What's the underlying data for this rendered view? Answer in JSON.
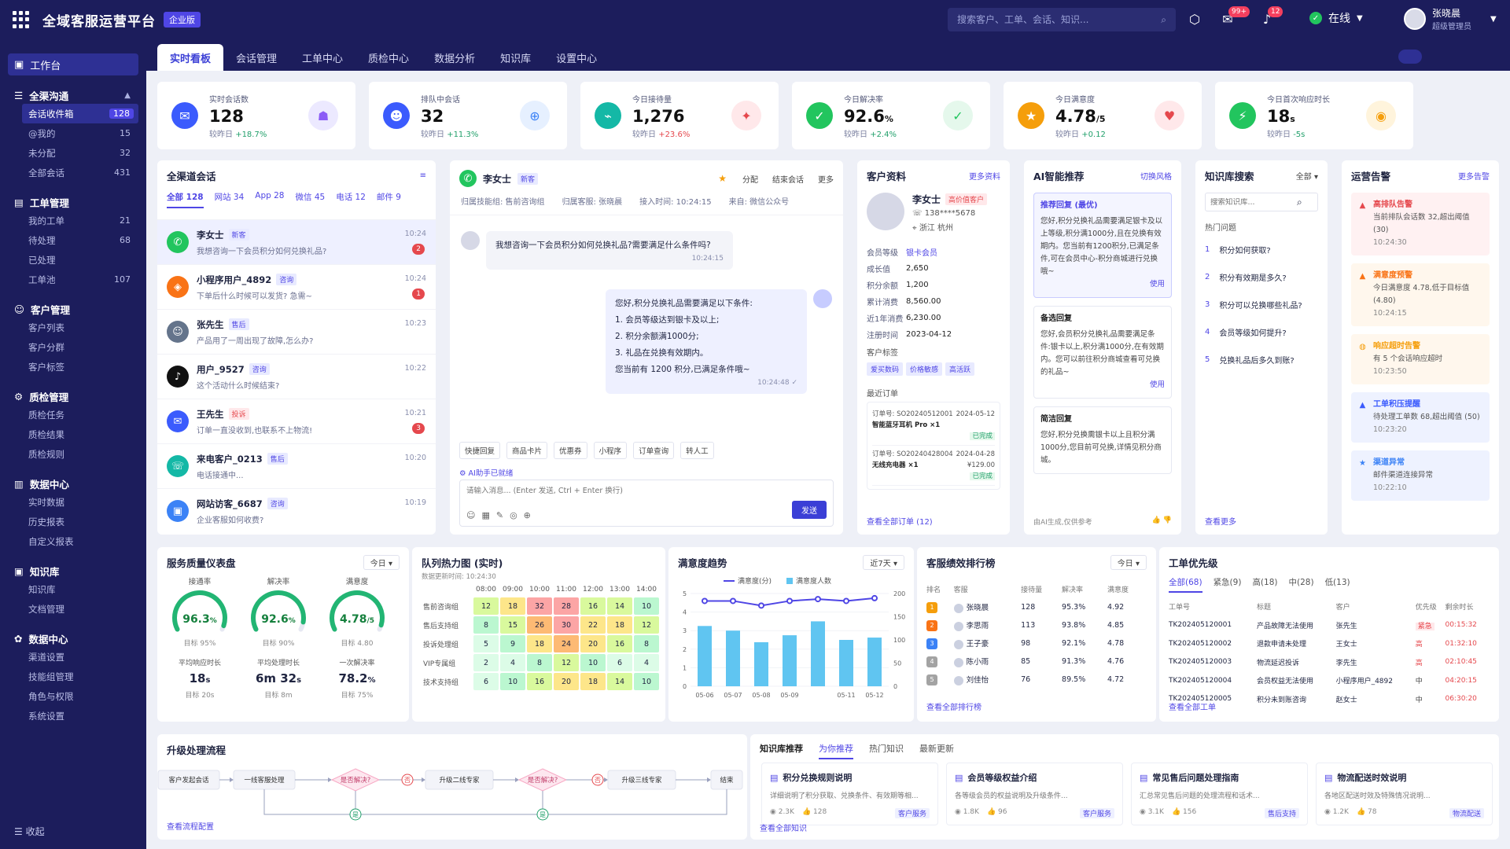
{
  "app": {
    "title": "全域客服运营平台",
    "edition": "企业版"
  },
  "search": {
    "placeholder": "搜索客户、工单、会话、知识..."
  },
  "badges": {
    "messages": "99+",
    "notifications": "12"
  },
  "status": "在线",
  "user": {
    "name": "张晓晨",
    "role": "超级管理员"
  },
  "sidebar": {
    "top": "工作台",
    "groups": [
      {
        "title": "全渠沟通",
        "items": [
          {
            "label": "会话收件箱",
            "count": "128"
          },
          {
            "label": "@我的",
            "count": "15"
          },
          {
            "label": "未分配",
            "count": "32"
          },
          {
            "label": "全部会话",
            "count": "431"
          }
        ]
      },
      {
        "title": "工单管理",
        "items": [
          {
            "label": "我的工单",
            "count": "21"
          },
          {
            "label": "待处理",
            "count": "68"
          },
          {
            "label": "已处理",
            "count": ""
          },
          {
            "label": "工单池",
            "count": "107"
          }
        ]
      },
      {
        "title": "客户管理",
        "items": [
          {
            "label": "客户列表",
            "count": ""
          },
          {
            "label": "客户分群",
            "count": ""
          },
          {
            "label": "客户标签",
            "count": ""
          }
        ]
      },
      {
        "title": "质检管理",
        "items": [
          {
            "label": "质检任务",
            "count": ""
          },
          {
            "label": "质检结果",
            "count": ""
          },
          {
            "label": "质检规则",
            "count": ""
          }
        ]
      },
      {
        "title": "数据中心",
        "items": [
          {
            "label": "实时数据",
            "count": ""
          },
          {
            "label": "历史报表",
            "count": ""
          },
          {
            "label": "自定义报表",
            "count": ""
          }
        ]
      },
      {
        "title": "知识库",
        "items": [
          {
            "label": "知识库",
            "count": ""
          },
          {
            "label": "文档管理",
            "count": ""
          }
        ]
      },
      {
        "title": "数据中心",
        "items": [
          {
            "label": "渠道设置",
            "count": ""
          },
          {
            "label": "技能组管理",
            "count": ""
          },
          {
            "label": "角色与权限",
            "count": ""
          },
          {
            "label": "系统设置",
            "count": ""
          }
        ]
      }
    ],
    "collapse": "收起"
  },
  "tabs": [
    "实时看板",
    "会话管理",
    "工单中心",
    "质检中心",
    "数据分析",
    "知识库",
    "设置中心"
  ],
  "kpis": [
    {
      "label": "实时会话数",
      "value": "128",
      "unit": "",
      "cmp_label": "较昨日",
      "cmp": "+18.7%",
      "dir": "up",
      "color": "#3b5bfd",
      "c2": "#ece9ff",
      "i2c": "#8b5cf6"
    },
    {
      "label": "排队中会话",
      "value": "32",
      "unit": "",
      "cmp_label": "较昨日",
      "cmp": "+11.3%",
      "dir": "up",
      "color": "#3b5bfd",
      "c2": "#e6f0ff",
      "i2c": "#3b82f6"
    },
    {
      "label": "今日接待量",
      "value": "1,276",
      "unit": "",
      "cmp_label": "较昨日",
      "cmp": "+23.6%",
      "dir": "down",
      "color": "#14b8a6",
      "c2": "#ffe8ea",
      "i2c": "#e5484d"
    },
    {
      "label": "今日解决率",
      "value": "92.6",
      "unit": "%",
      "cmp_label": "较昨日",
      "cmp": "+2.4%",
      "dir": "up",
      "color": "#22c55e",
      "c2": "#e5f8ec",
      "i2c": "#22c55e"
    },
    {
      "label": "今日满意度",
      "value": "4.78",
      "unit": "/5",
      "cmp_label": "较昨日",
      "cmp": "+0.12",
      "dir": "up",
      "color": "#f59e0b",
      "c2": "#ffe8ea",
      "i2c": "#e5484d"
    },
    {
      "label": "今日首次响应时长",
      "value": "18",
      "unit": "s",
      "cmp_label": "较昨日",
      "cmp": "-5s",
      "dir": "up",
      "color": "#22c55e",
      "c2": "#fff4dc",
      "i2c": "#f59e0b"
    }
  ],
  "conversations": {
    "title": "全渠道会话",
    "filters": [
      "全部 128",
      "网站 34",
      "App 28",
      "微信 45",
      "电话 12",
      "邮件 9"
    ],
    "rows": [
      {
        "name": "李女士",
        "tag": "新客",
        "tagc": "blue",
        "msg": "我想咨询一下会员积分如何兑换礼品?",
        "time": "10:24",
        "unread": "2",
        "color": "#22c55e"
      },
      {
        "name": "小程序用户_4892",
        "tag": "咨询",
        "tagc": "blue",
        "msg": "下单后什么时候可以发货? 急需~",
        "time": "10:24",
        "unread": "1",
        "color": "#f97316"
      },
      {
        "name": "张先生",
        "tag": "售后",
        "tagc": "blue",
        "msg": "产品用了一周出现了故障,怎么办?",
        "time": "10:23",
        "unread": "",
        "color": "#64748b"
      },
      {
        "name": "用户_9527",
        "tag": "咨询",
        "tagc": "blue",
        "msg": "这个活动什么时候结束?",
        "time": "10:22",
        "unread": "",
        "color": "#111111"
      },
      {
        "name": "王先生",
        "tag": "投诉",
        "tagc": "red",
        "msg": "订单一直没收到,也联系不上物流!",
        "time": "10:21",
        "unread": "3",
        "color": "#3b5bfd"
      },
      {
        "name": "来电客户_0213",
        "tag": "售后",
        "tagc": "blue",
        "msg": "电话接通中...",
        "time": "10:20",
        "unread": "",
        "color": "#14b8a6"
      },
      {
        "name": "网站访客_6687",
        "tag": "咨询",
        "tagc": "blue",
        "msg": "企业客服如何收费?",
        "time": "10:19",
        "unread": "",
        "color": "#3b82f6"
      }
    ]
  },
  "chat": {
    "name": "李女士",
    "tag": "新客",
    "actions": [
      "分配",
      "结束会话",
      "更多"
    ],
    "meta": [
      "归属技能组: 售前咨询组",
      "归属客服: 张晓晨",
      "接入时间: 10:24:15",
      "来自: 微信公众号"
    ],
    "msg_in": "我想咨询一下会员积分如何兑换礼品?需要满足什么条件吗?",
    "msg_in_time": "10:24:15",
    "reply": [
      "您好,积分兑换礼品需要满足以下条件:",
      "1. 会员等级达到银卡及以上;",
      "2. 积分余额满1000分;",
      "3. 礼品在兑换有效期内。",
      "您当前有 1200 积分,已满足条件哦~"
    ],
    "reply_time": "10:24:48",
    "quick": [
      "快捷回复",
      "商品卡片",
      "优惠券",
      "小程序",
      "订单查询",
      "转人工"
    ],
    "ai_status": "AI助手已就绪",
    "input_placeholder": "请输入消息... (Enter 发送, Ctrl + Enter 换行)",
    "send": "发送"
  },
  "customer": {
    "title": "客户资料",
    "more": "更多资料",
    "name": "李女士",
    "level_tag": "高价值客户",
    "phone": "138****5678",
    "location": "浙江 杭州",
    "fields": [
      [
        "会员等级",
        "银卡会员"
      ],
      [
        "成长值",
        "2,650"
      ],
      [
        "积分余额",
        "1,200"
      ],
      [
        "累计消费",
        "8,560.00"
      ],
      [
        "近1年消费",
        "6,230.00"
      ],
      [
        "注册时间",
        "2023-04-12"
      ]
    ],
    "tags_label": "客户标签",
    "tags": [
      "爱买数码",
      "价格敏感",
      "高活跃"
    ],
    "orders_label": "最近订单",
    "orders": [
      {
        "no": "订单号: SO20240512001",
        "date": "2024-05-12",
        "item": "智能蓝牙耳机 Pro ×1",
        "status": "已完成",
        "amount": ""
      },
      {
        "no": "订单号: SO20240428004",
        "date": "2024-04-28",
        "item": "无线充电器 ×1",
        "status": "已完成",
        "amount": "¥129.00"
      }
    ],
    "all_orders": "查看全部订单 (12)"
  },
  "ai": {
    "title": "AI智能推荐",
    "switch": "切换风格",
    "cards": [
      {
        "h": "推荐回复 (最优)",
        "b": "您好,积分兑换礼品需要满足银卡及以上等级,积分满1000分,且在兑换有效期内。您当前有1200积分,已满足条件,可在会员中心-积分商城进行兑换哦~",
        "use": "使用"
      },
      {
        "h": "备选回复",
        "b": "您好,会员积分兑换礼品需要满足条件:银卡以上,积分满1000分,在有效期内。您可以前往积分商城查看可兑换的礼品~",
        "use": "使用"
      },
      {
        "h": "简洁回复",
        "b": "您好,积分兑换需银卡以上且积分满1000分,您目前可兑换,详情见积分商城。",
        "use": ""
      }
    ],
    "footer": "由AI生成,仅供参考"
  },
  "kb": {
    "title": "知识库搜索",
    "filter": "全部",
    "placeholder": "搜索知识库...",
    "hot": "热门问题",
    "questions": [
      "积分如何获取?",
      "积分有效期是多久?",
      "积分可以兑换哪些礼品?",
      "会员等级如何提升?",
      "兑换礼品后多久到账?"
    ],
    "more": "查看更多"
  },
  "alerts": {
    "title": "运营告警",
    "more": "更多告警",
    "items": [
      {
        "t": "高排队告警",
        "d": "当前排队会话数 32,超出阈值 (30)",
        "tm": "10:24:30",
        "bg": "#fff1f2",
        "c": "#e5484d"
      },
      {
        "t": "满意度预警",
        "d": "今日满意度 4.78,低于目标值 (4.80)",
        "tm": "10:24:15",
        "bg": "#fff7ed",
        "c": "#f97316"
      },
      {
        "t": "响应超时告警",
        "d": "有 5 个会话响应超时",
        "tm": "10:23:50",
        "bg": "#fff7ed",
        "c": "#f59e0b"
      },
      {
        "t": "工单积压提醒",
        "d": "待处理工单数 68,超出阈值 (50)",
        "tm": "10:23:20",
        "bg": "#eef2ff",
        "c": "#3b5bfd"
      },
      {
        "t": "渠道异常",
        "d": "邮件渠道连接异常",
        "tm": "10:22:10",
        "bg": "#eef2ff",
        "c": "#3b82f6"
      }
    ]
  },
  "quality": {
    "title": "服务质量仪表盘",
    "filter": "今日",
    "gauges": [
      {
        "label": "接通率",
        "value": "96.3",
        "unit": "%",
        "target": "目标 95%",
        "pct": 0.963
      },
      {
        "label": "解决率",
        "value": "92.6",
        "unit": "%",
        "target": "目标 90%",
        "pct": 0.926
      },
      {
        "label": "满意度",
        "value": "4.78",
        "unit": "/5",
        "target": "目标 4.80",
        "pct": 0.956
      }
    ],
    "stats": [
      {
        "label": "平均响应时长",
        "value": "18",
        "unit": "s",
        "target": "目标 20s"
      },
      {
        "label": "平均处理时长",
        "value": "6m 32",
        "unit": "s",
        "target": "目标 8m"
      },
      {
        "label": "一次解决率",
        "value": "78.2",
        "unit": "%",
        "target": "目标 75%"
      }
    ]
  },
  "heatmap": {
    "title": "队列热力图 (实时)",
    "updated": "数据更新时间: 10:24:30",
    "cols": [
      "08:00",
      "09:00",
      "10:00",
      "11:00",
      "12:00",
      "13:00",
      "14:00"
    ],
    "rows": [
      {
        "label": "售前咨询组",
        "v": [
          12,
          18,
          32,
          28,
          16,
          14,
          10
        ]
      },
      {
        "label": "售后支持组",
        "v": [
          8,
          15,
          26,
          30,
          22,
          18,
          12
        ]
      },
      {
        "label": "投诉处理组",
        "v": [
          5,
          9,
          18,
          24,
          20,
          16,
          8
        ]
      },
      {
        "label": "VIP专属组",
        "v": [
          2,
          4,
          8,
          12,
          10,
          6,
          4
        ]
      },
      {
        "label": "技术支持组",
        "v": [
          6,
          10,
          16,
          20,
          18,
          14,
          10
        ]
      }
    ]
  },
  "chart_data": {
    "type": "bar",
    "title": "满意度趋势",
    "filter": "近7天",
    "categories": [
      "05-06",
      "05-07",
      "05-08",
      "05-09",
      "05-10",
      "05-11",
      "05-12"
    ],
    "ticks": [
      "05-06",
      "05-07",
      "05-08",
      "05-09",
      "05-11",
      "05-12"
    ],
    "series": [
      {
        "name": "满意度(分)",
        "type": "line",
        "axis": "left",
        "values": [
          4.6,
          4.6,
          4.35,
          4.6,
          4.7,
          4.6,
          4.75
        ],
        "color": "#4f46e5"
      },
      {
        "name": "满意度人数",
        "type": "bar",
        "axis": "right",
        "values": [
          130,
          120,
          95,
          110,
          140,
          100,
          105
        ],
        "color": "#60c5f1"
      }
    ],
    "yleft": [
      0,
      5
    ],
    "yright": [
      0,
      200
    ],
    "yleft_ticks": [
      "0",
      "1",
      "2",
      "3",
      "4",
      "5"
    ],
    "yright_ticks": [
      "0",
      "50",
      "100",
      "150",
      "200"
    ],
    "legend": "top"
  },
  "ranking": {
    "title": "客服绩效排行榜",
    "filter": "今日",
    "headers": [
      "排名",
      "客服",
      "接待量",
      "解决率",
      "满意度"
    ],
    "rows": [
      {
        "rank": "1",
        "name": "张晓晨",
        "n": "128",
        "r": "95.3%",
        "s": "4.92"
      },
      {
        "rank": "2",
        "name": "李思雨",
        "n": "113",
        "r": "93.8%",
        "s": "4.85"
      },
      {
        "rank": "3",
        "name": "王子豪",
        "n": "98",
        "r": "92.1%",
        "s": "4.78"
      },
      {
        "rank": "4",
        "name": "陈小雨",
        "n": "85",
        "r": "91.3%",
        "s": "4.76"
      },
      {
        "rank": "5",
        "name": "刘佳怡",
        "n": "76",
        "r": "89.5%",
        "s": "4.72"
      }
    ],
    "more": "查看全部排行榜"
  },
  "tickets": {
    "title": "工单优先级",
    "filters": [
      "全部(68)",
      "紧急(9)",
      "高(18)",
      "中(28)",
      "低(13)"
    ],
    "headers": [
      "工单号",
      "标题",
      "客户",
      "优先级",
      "剩余时长"
    ],
    "rows": [
      {
        "id": "TK202405120001",
        "t": "产品故障无法使用",
        "c": "张先生",
        "p": "紧急",
        "r": "00:15:32"
      },
      {
        "id": "TK202405120002",
        "t": "退款申请未处理",
        "c": "王女士",
        "p": "高",
        "r": "01:32:10"
      },
      {
        "id": "TK202405120003",
        "t": "物流延迟投诉",
        "c": "李先生",
        "p": "高",
        "r": "02:10:45"
      },
      {
        "id": "TK202405120004",
        "t": "会员权益无法使用",
        "c": "小程序用户_4892",
        "p": "中",
        "r": "04:20:15"
      },
      {
        "id": "TK202405120005",
        "t": "积分未到账咨询",
        "c": "赵女士",
        "p": "中",
        "r": "06:30:20"
      }
    ],
    "more": "查看全部工单"
  },
  "flow": {
    "title": "升级处理流程",
    "nodes": [
      "客户发起会话",
      "一线客服处理",
      "是否解决?",
      "升级二线专家",
      "是否解决?",
      "升级三线专家",
      "结束"
    ],
    "no": "否",
    "yes": "是",
    "more": "查看流程配置"
  },
  "kbrec": {
    "tabs": [
      "知识库推荐",
      "为你推荐",
      "热门知识",
      "最新更新"
    ],
    "cards": [
      {
        "t": "积分兑换规则说明",
        "d": "详细说明了积分获取、兑换条件、有效期等相...",
        "views": "2.3K",
        "likes": "128",
        "cat": "客户服务"
      },
      {
        "t": "会员等级权益介绍",
        "d": "各等级会员的权益说明及升级条件...",
        "views": "1.8K",
        "likes": "96",
        "cat": "客户服务"
      },
      {
        "t": "常见售后问题处理指南",
        "d": "汇总常见售后问题的处理流程和话术...",
        "views": "3.1K",
        "likes": "156",
        "cat": "售后支持"
      },
      {
        "t": "物流配送时效说明",
        "d": "各地区配送时效及特殊情况说明...",
        "views": "1.2K",
        "likes": "78",
        "cat": "物流配送"
      }
    ],
    "more": "查看全部知识"
  }
}
